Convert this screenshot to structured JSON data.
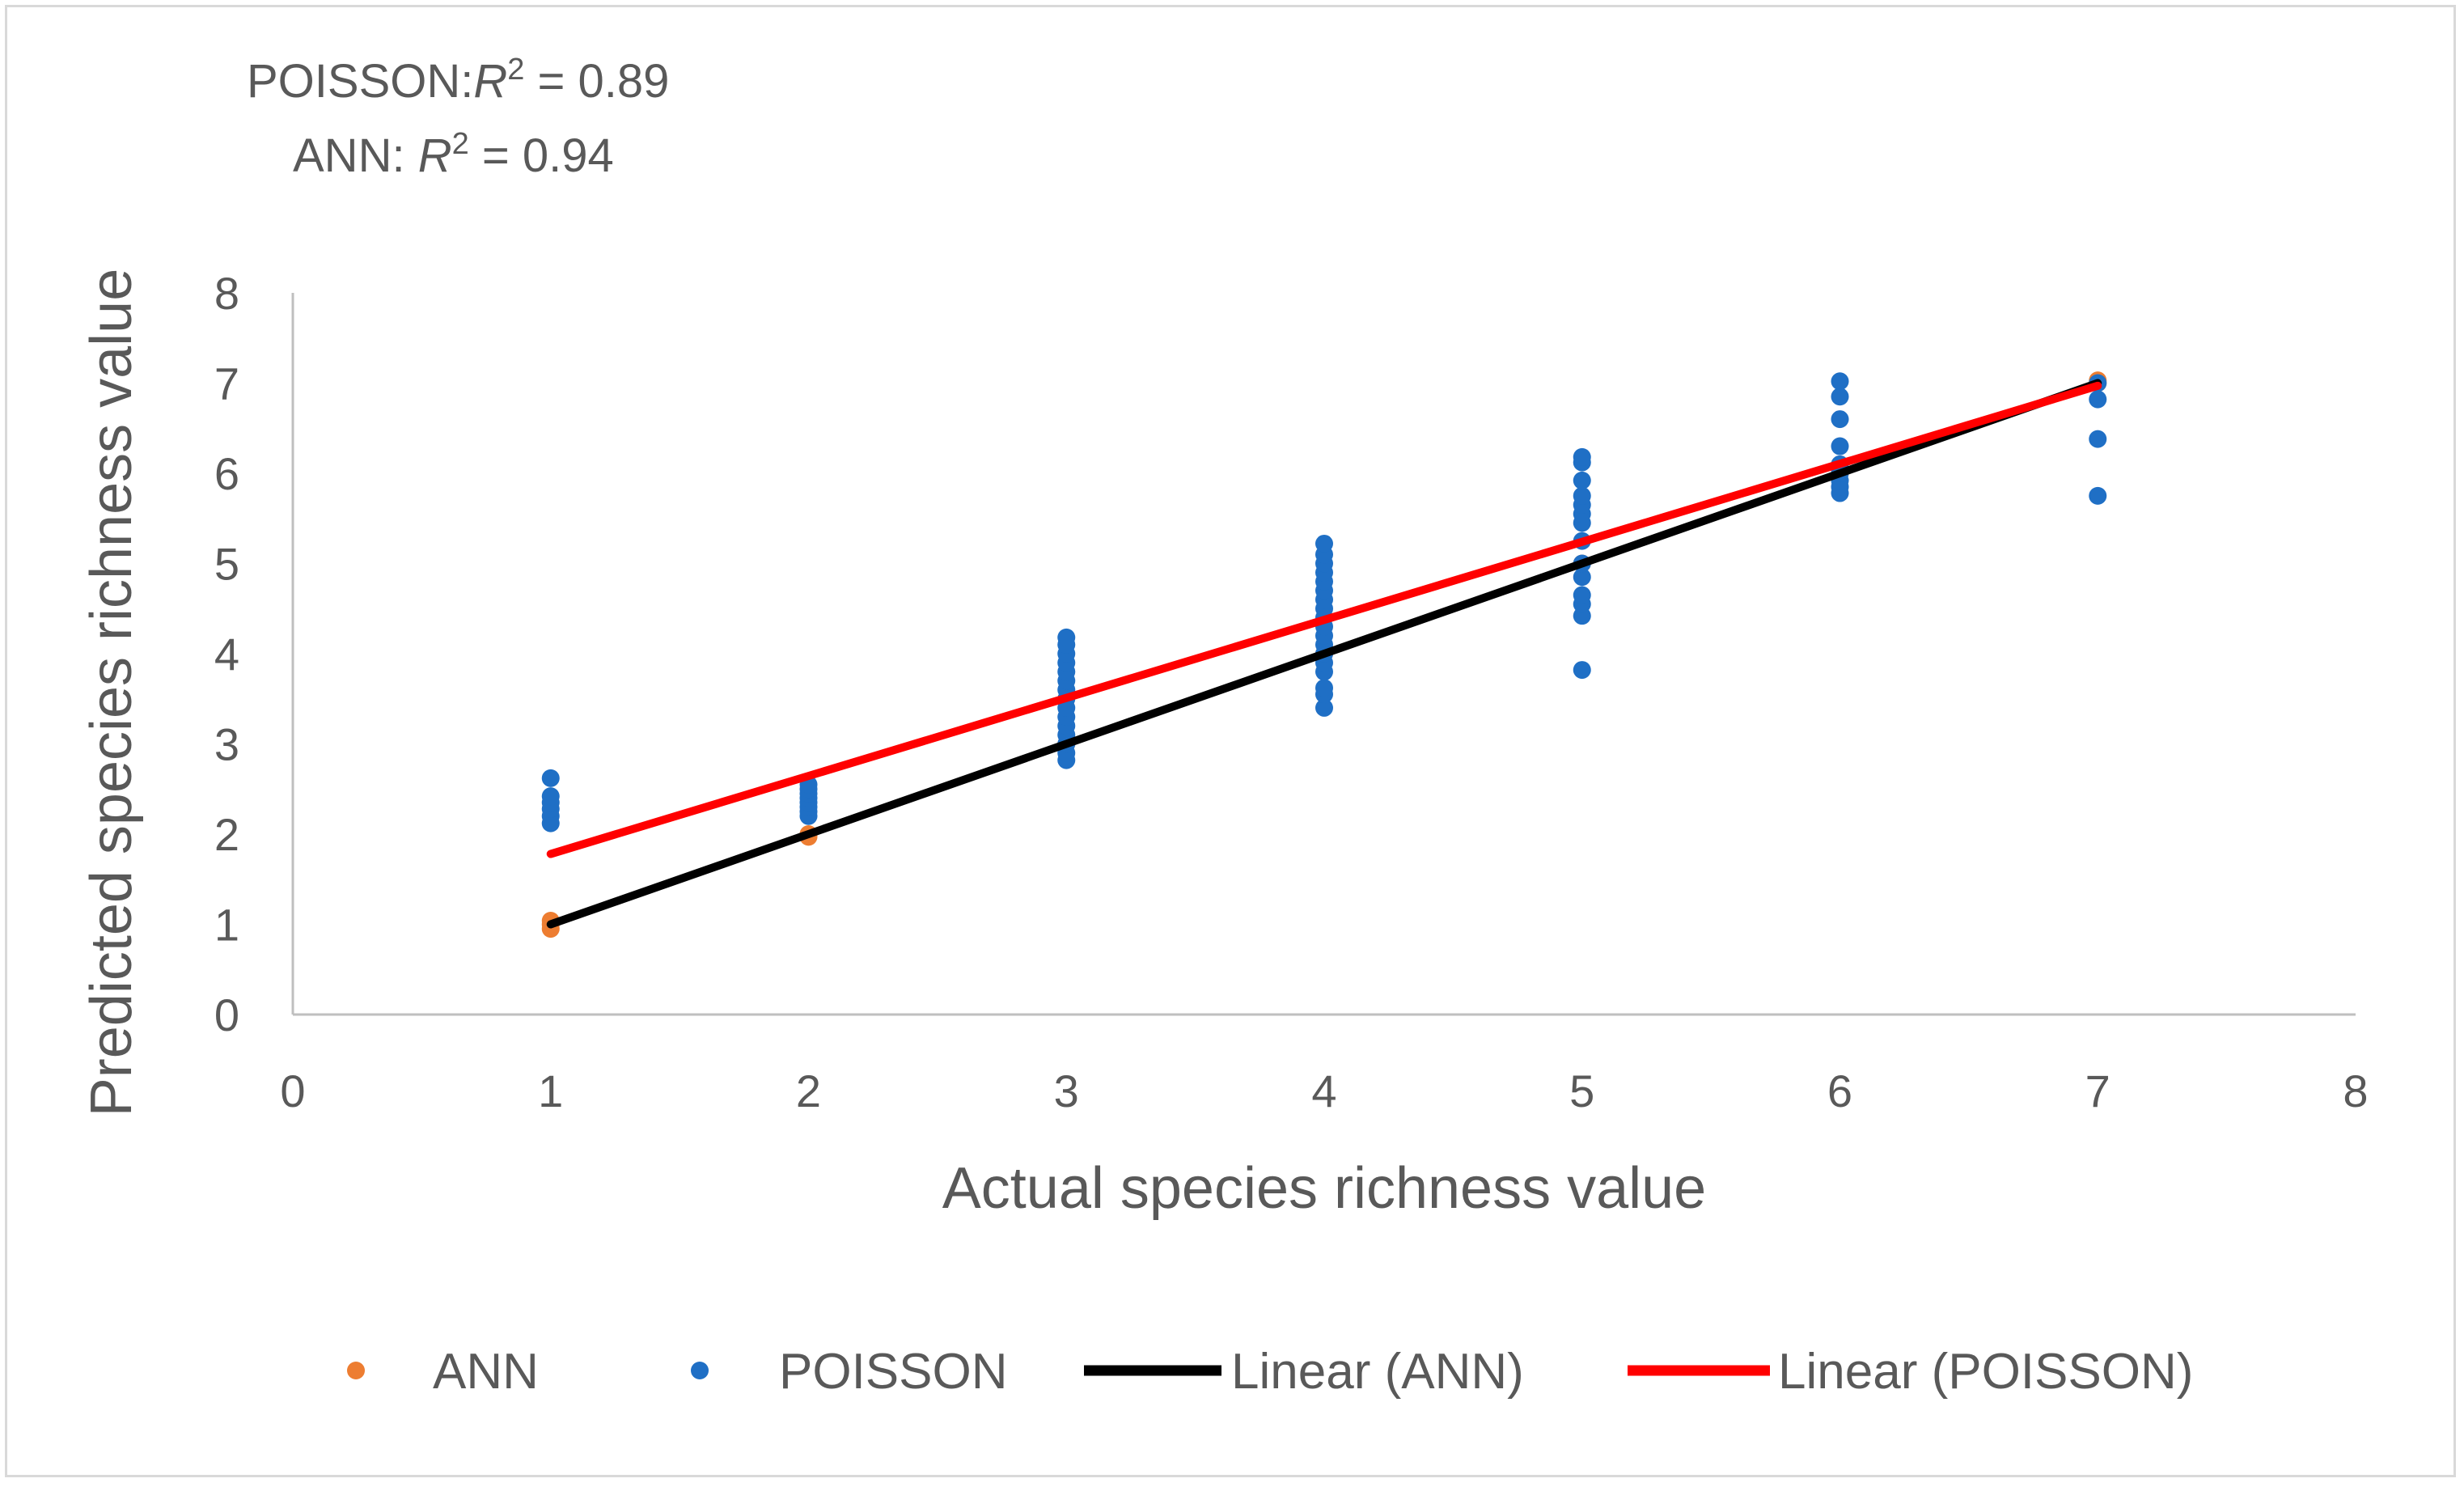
{
  "annotations": [
    {
      "prefix": "POISSON:",
      "rsym": "R",
      "sup": "2",
      "value": " = 0.89"
    },
    {
      "prefix": "ANN: ",
      "rsym": "R",
      "sup": "2",
      "value": " = 0.94"
    }
  ],
  "legend": [
    {
      "label": "ANN",
      "kind": "marker",
      "color": "#ED7D31"
    },
    {
      "label": "POISSON",
      "kind": "marker",
      "color": "#1F6FC5"
    },
    {
      "label": "Linear (ANN)",
      "kind": "line",
      "color": "#000000"
    },
    {
      "label": "Linear (POISSON)",
      "kind": "line",
      "color": "#FF0000"
    }
  ],
  "chart_data": {
    "type": "scatter",
    "title": "",
    "xlabel": "Actual species richness value",
    "ylabel": "Predicted species richness value",
    "xlim": [
      0,
      8
    ],
    "ylim": [
      0,
      8
    ],
    "xticks": [
      "0",
      "1",
      "2",
      "3",
      "4",
      "5",
      "6",
      "7",
      "8"
    ],
    "yticks": [
      "0",
      "1",
      "2",
      "3",
      "4",
      "5",
      "6",
      "7",
      "8"
    ],
    "grid": false,
    "legend_position": "bottom",
    "series": [
      {
        "name": "ANN",
        "color": "#ED7D31",
        "points": [
          [
            1,
            0.95
          ],
          [
            1,
            1.0
          ],
          [
            1,
            1.04
          ],
          [
            2,
            1.97
          ],
          [
            2,
            2.0
          ],
          [
            3,
            3.0
          ],
          [
            4,
            4.0
          ],
          [
            5,
            5.0
          ],
          [
            6,
            6.0
          ],
          [
            7,
            7.0
          ],
          [
            7,
            7.03
          ]
        ]
      },
      {
        "name": "POISSON",
        "color": "#1F6FC5",
        "points": [
          [
            1,
            2.12
          ],
          [
            1,
            2.2
          ],
          [
            1,
            2.28
          ],
          [
            1,
            2.35
          ],
          [
            1,
            2.42
          ],
          [
            1,
            2.62
          ],
          [
            2,
            2.2
          ],
          [
            2,
            2.25
          ],
          [
            2,
            2.3
          ],
          [
            2,
            2.35
          ],
          [
            2,
            2.4
          ],
          [
            2,
            2.45
          ],
          [
            2,
            2.5
          ],
          [
            2,
            2.55
          ],
          [
            3,
            2.82
          ],
          [
            3,
            2.9
          ],
          [
            3,
            3.0
          ],
          [
            3,
            3.1
          ],
          [
            3,
            3.2
          ],
          [
            3,
            3.3
          ],
          [
            3,
            3.4
          ],
          [
            3,
            3.5
          ],
          [
            3,
            3.6
          ],
          [
            3,
            3.7
          ],
          [
            3,
            3.8
          ],
          [
            3,
            3.9
          ],
          [
            3,
            4.0
          ],
          [
            3,
            4.1
          ],
          [
            3,
            4.18
          ],
          [
            4,
            3.4
          ],
          [
            4,
            3.55
          ],
          [
            4,
            3.62
          ],
          [
            4,
            3.8
          ],
          [
            4,
            3.9
          ],
          [
            4,
            4.0
          ],
          [
            4,
            4.1
          ],
          [
            4,
            4.2
          ],
          [
            4,
            4.3
          ],
          [
            4,
            4.4
          ],
          [
            4,
            4.5
          ],
          [
            4,
            4.6
          ],
          [
            4,
            4.7
          ],
          [
            4,
            4.8
          ],
          [
            4,
            4.9
          ],
          [
            4,
            5.0
          ],
          [
            4,
            5.1
          ],
          [
            4,
            5.22
          ],
          [
            5,
            3.82
          ],
          [
            5,
            4.42
          ],
          [
            5,
            4.55
          ],
          [
            5,
            4.65
          ],
          [
            5,
            4.85
          ],
          [
            5,
            5.0
          ],
          [
            5,
            5.25
          ],
          [
            5,
            5.45
          ],
          [
            5,
            5.55
          ],
          [
            5,
            5.65
          ],
          [
            5,
            5.75
          ],
          [
            5,
            5.92
          ],
          [
            5,
            6.12
          ],
          [
            5,
            6.18
          ],
          [
            6,
            5.78
          ],
          [
            6,
            5.85
          ],
          [
            6,
            5.92
          ],
          [
            6,
            6.0
          ],
          [
            6,
            6.1
          ],
          [
            6,
            6.3
          ],
          [
            6,
            6.6
          ],
          [
            6,
            6.85
          ],
          [
            6,
            7.02
          ],
          [
            7,
            5.75
          ],
          [
            7,
            6.38
          ],
          [
            7,
            6.82
          ],
          [
            7,
            7.0
          ]
        ]
      }
    ],
    "trendlines": [
      {
        "name": "Linear (ANN)",
        "color": "#000000",
        "from": [
          1,
          1.0
        ],
        "to": [
          7,
          7.0
        ]
      },
      {
        "name": "Linear (POISSON)",
        "color": "#FF0000",
        "from": [
          1,
          1.78
        ],
        "to": [
          7,
          6.97
        ]
      }
    ]
  }
}
